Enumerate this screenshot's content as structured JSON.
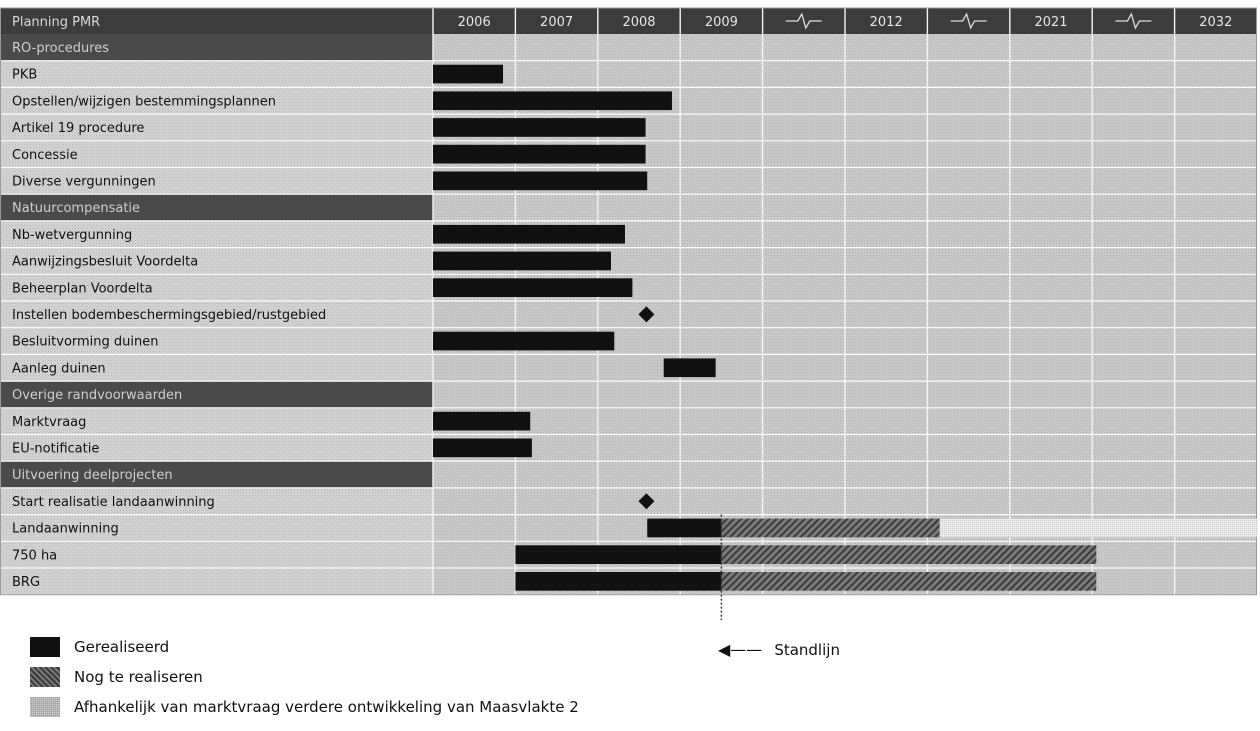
{
  "chart_data": {
    "type": "gantt",
    "header_label": "Planning PMR",
    "axis_columns": [
      "2006",
      "2007",
      "2008",
      "2009",
      "break",
      "2012",
      "break",
      "2021",
      "break",
      "2032"
    ],
    "standlijn_column": 3.5,
    "rows": [
      {
        "label": "RO-procedures",
        "kind": "section"
      },
      {
        "label": "PKB",
        "kind": "task",
        "bars": [
          {
            "status": "done",
            "start": 0.0,
            "end": 0.85
          }
        ]
      },
      {
        "label": "Opstellen/wijzigen bestemmingsplannen",
        "kind": "task",
        "bars": [
          {
            "status": "done",
            "start": 0.0,
            "end": 2.9
          }
        ]
      },
      {
        "label": "Artikel 19 procedure",
        "kind": "task",
        "bars": [
          {
            "status": "done",
            "start": 0.0,
            "end": 2.58
          }
        ]
      },
      {
        "label": "Concessie",
        "kind": "task",
        "bars": [
          {
            "status": "done",
            "start": 0.0,
            "end": 2.58
          }
        ]
      },
      {
        "label": "Diverse vergunningen",
        "kind": "task",
        "bars": [
          {
            "status": "done",
            "start": 0.0,
            "end": 2.6
          }
        ]
      },
      {
        "label": "Natuurcompensatie",
        "kind": "section"
      },
      {
        "label": "Nb-wetvergunning",
        "kind": "task",
        "bars": [
          {
            "status": "done",
            "start": 0.0,
            "end": 2.33
          }
        ]
      },
      {
        "label": "Aanwijzingsbesluit Voordelta",
        "kind": "task",
        "bars": [
          {
            "status": "done",
            "start": 0.0,
            "end": 2.16
          }
        ]
      },
      {
        "label": "Beheerplan Voordelta",
        "kind": "task",
        "bars": [
          {
            "status": "done",
            "start": 0.0,
            "end": 2.42
          }
        ]
      },
      {
        "label": "Instellen bodembeschermingsgebied/rustgebied",
        "kind": "task",
        "milestone": 2.59
      },
      {
        "label": "Besluitvorming duinen",
        "kind": "task",
        "bars": [
          {
            "status": "done",
            "start": 0.0,
            "end": 2.2
          }
        ]
      },
      {
        "label": "Aanleg duinen",
        "kind": "task",
        "bars": [
          {
            "status": "done",
            "start": 2.8,
            "end": 3.43
          }
        ]
      },
      {
        "label": "Overige randvoorwaarden",
        "kind": "section"
      },
      {
        "label": "Marktvraag",
        "kind": "task",
        "bars": [
          {
            "status": "done",
            "start": 0.0,
            "end": 1.18
          }
        ]
      },
      {
        "label": "EU-notificatie",
        "kind": "task",
        "bars": [
          {
            "status": "done",
            "start": 0.0,
            "end": 1.2
          }
        ]
      },
      {
        "label": "Uitvoering deelprojecten",
        "kind": "section"
      },
      {
        "label": "Start realisatie landaanwinning",
        "kind": "task",
        "milestone": 2.59
      },
      {
        "label": "Landaanwinning",
        "kind": "task",
        "bars": [
          {
            "status": "done",
            "start": 2.6,
            "end": 3.5
          },
          {
            "status": "todo",
            "start": 3.5,
            "end": 6.15
          },
          {
            "status": "market",
            "start": 6.15,
            "end": 10.0
          }
        ]
      },
      {
        "label": "750 ha",
        "kind": "task",
        "bars": [
          {
            "status": "done",
            "start": 1.0,
            "end": 3.5
          },
          {
            "status": "todo",
            "start": 3.5,
            "end": 8.05
          }
        ]
      },
      {
        "label": "BRG",
        "kind": "task",
        "bars": [
          {
            "status": "done",
            "start": 1.0,
            "end": 3.5
          },
          {
            "status": "todo",
            "start": 3.5,
            "end": 8.05
          }
        ]
      }
    ],
    "legend": [
      {
        "status": "done",
        "label": "Gerealiseerd"
      },
      {
        "status": "todo",
        "label": "Nog te realiseren"
      },
      {
        "status": "market",
        "label": "Afhankelijk van marktvraag verdere ontwikkeling van Maasvlakte 2"
      }
    ],
    "standlijn_label": "Standlijn"
  },
  "colors": {
    "header_bg": "#3c3c3c",
    "section_bg": "#4a4a4a",
    "label_bg": "#cfcfcf",
    "grid_bg": "#c4c4c4",
    "done": "#111111",
    "todo": "#5a5a5a",
    "market": "#e2e2e2"
  }
}
